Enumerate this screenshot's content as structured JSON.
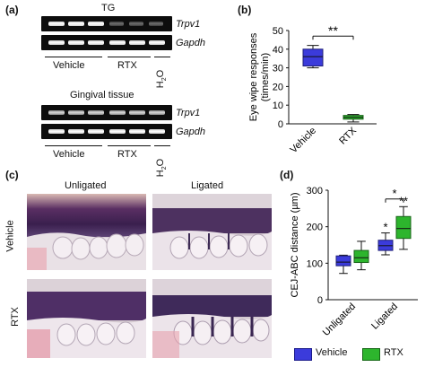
{
  "panel_a": {
    "letter": "(a)",
    "tg_title": "TG",
    "gingival_title": "Gingival tissue",
    "gene_trpv1": "Trpv1",
    "gene_gapdh": "Gapdh",
    "group_vehicle": "Vehicle",
    "group_rtx": "RTX",
    "group_water_h": "H",
    "group_water_sub": "2",
    "group_water_o": "O"
  },
  "panel_b": {
    "letter": "(b)",
    "significance": "**",
    "chart_data": {
      "type": "box",
      "ylabel_line1": "Eye wipe responses",
      "ylabel_line2": "(times/min)",
      "ylim": [
        0,
        50
      ],
      "yticks": [
        "0",
        "10",
        "20",
        "30",
        "40",
        "50"
      ],
      "categories": [
        "Vehicle",
        "RTX"
      ],
      "boxes": [
        {
          "name": "Vehicle",
          "min": 30,
          "q1": 31,
          "median": 36,
          "q3": 40,
          "max": 42,
          "color": "#3b3bdb"
        },
        {
          "name": "RTX",
          "min": 1,
          "q1": 2.5,
          "median": 3.5,
          "q3": 4.5,
          "max": 5,
          "color": "#2db52d"
        }
      ]
    }
  },
  "panel_c": {
    "letter": "(c)",
    "col_unligated": "Unligated",
    "col_ligated": "Ligated",
    "row_vehicle": "Vehicle",
    "row_rtx": "RTX"
  },
  "panel_d": {
    "letter": "(d)",
    "sig_single_1": "*",
    "sig_single_2": "*",
    "sig_double": "**",
    "legend_vehicle": "Vehicle",
    "legend_rtx": "RTX",
    "chart_data": {
      "type": "box",
      "ylabel": "CEJ-ABC distance (µm)",
      "ylim": [
        0,
        300
      ],
      "yticks": [
        "0",
        "100",
        "200",
        "300"
      ],
      "categories": [
        "Unligated",
        "Ligated"
      ],
      "series": [
        {
          "name": "Vehicle",
          "color": "#3b3bdb",
          "boxes": [
            {
              "min": 72,
              "q1": 93,
              "median": 103,
              "q3": 120,
              "max": 122
            },
            {
              "min": 123,
              "q1": 135,
              "median": 148,
              "q3": 163,
              "max": 183
            }
          ]
        },
        {
          "name": "RTX",
          "color": "#2db52d",
          "boxes": [
            {
              "min": 82,
              "q1": 102,
              "median": 115,
              "q3": 135,
              "max": 160
            },
            {
              "min": 138,
              "q1": 168,
              "median": 195,
              "q3": 228,
              "max": 255
            }
          ]
        }
      ]
    }
  }
}
